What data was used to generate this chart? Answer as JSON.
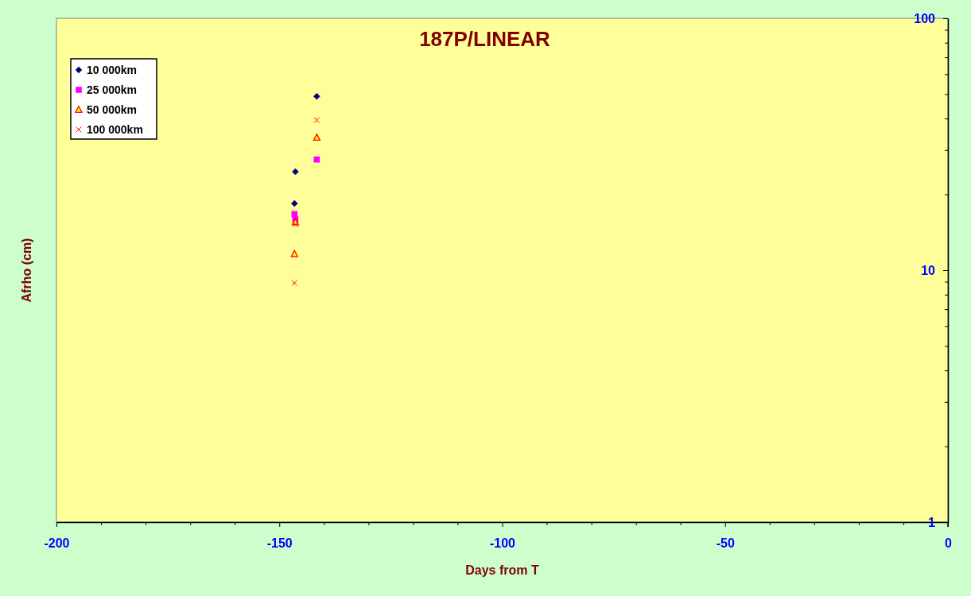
{
  "chart_data": {
    "type": "scatter",
    "title": "187P/LINEAR",
    "xlabel": "Days from T",
    "ylabel": "Afrho (cm)",
    "x": [
      -146.6,
      -146.4,
      -141.6
    ],
    "series": [
      {
        "name": "10 000km",
        "color": "#000080",
        "marker": "diamond",
        "values": [
          18.4,
          24.6,
          49
        ]
      },
      {
        "name": "25 000km",
        "color": "#ff00ff",
        "marker": "square",
        "values": [
          16.7,
          15.9,
          27.5
        ]
      },
      {
        "name": "50 000km",
        "color": "#ff0000",
        "marker": "triangle",
        "values": [
          11.6,
          15.5,
          33.6
        ]
      },
      {
        "name": "100 000km",
        "color": "#ff0000",
        "marker": "cross",
        "values": [
          8.9,
          15.2,
          39.4
        ]
      }
    ],
    "xlim": [
      -200,
      0
    ],
    "xticks": [
      -200,
      {
        "value": -190,
        "label": null
      },
      {
        "value": -180,
        "label": null
      },
      {
        "value": -170,
        "label": null
      },
      {
        "value": -160,
        "label": null
      },
      -150,
      {
        "value": -140,
        "label": null
      },
      {
        "value": -130,
        "label": null
      },
      {
        "value": -120,
        "label": null
      },
      {
        "value": -110,
        "label": null
      },
      -100,
      {
        "value": -90,
        "label": null
      },
      {
        "value": -80,
        "label": null
      },
      {
        "value": -70,
        "label": null
      },
      {
        "value": -60,
        "label": null
      },
      -50,
      {
        "value": -40,
        "label": null
      },
      {
        "value": -30,
        "label": null
      },
      {
        "value": -20,
        "label": null
      },
      {
        "value": -10,
        "label": null
      },
      0
    ],
    "ylim": [
      1,
      100
    ],
    "yticks": [
      1,
      {
        "value": 2,
        "label": null
      },
      {
        "value": 3,
        "label": null
      },
      {
        "value": 4,
        "label": null
      },
      {
        "value": 5,
        "label": null
      },
      {
        "value": 6,
        "label": null
      },
      {
        "value": 7,
        "label": null
      },
      {
        "value": 8,
        "label": null
      },
      {
        "value": 9,
        "label": null
      },
      10,
      {
        "value": 20,
        "label": null
      },
      {
        "value": 30,
        "label": null
      },
      {
        "value": 40,
        "label": null
      },
      {
        "value": 50,
        "label": null
      },
      {
        "value": 60,
        "label": null
      },
      {
        "value": 70,
        "label": null
      },
      {
        "value": 80,
        "label": null
      },
      {
        "value": 90,
        "label": null
      },
      100
    ],
    "log": "y",
    "legend": "top left"
  }
}
